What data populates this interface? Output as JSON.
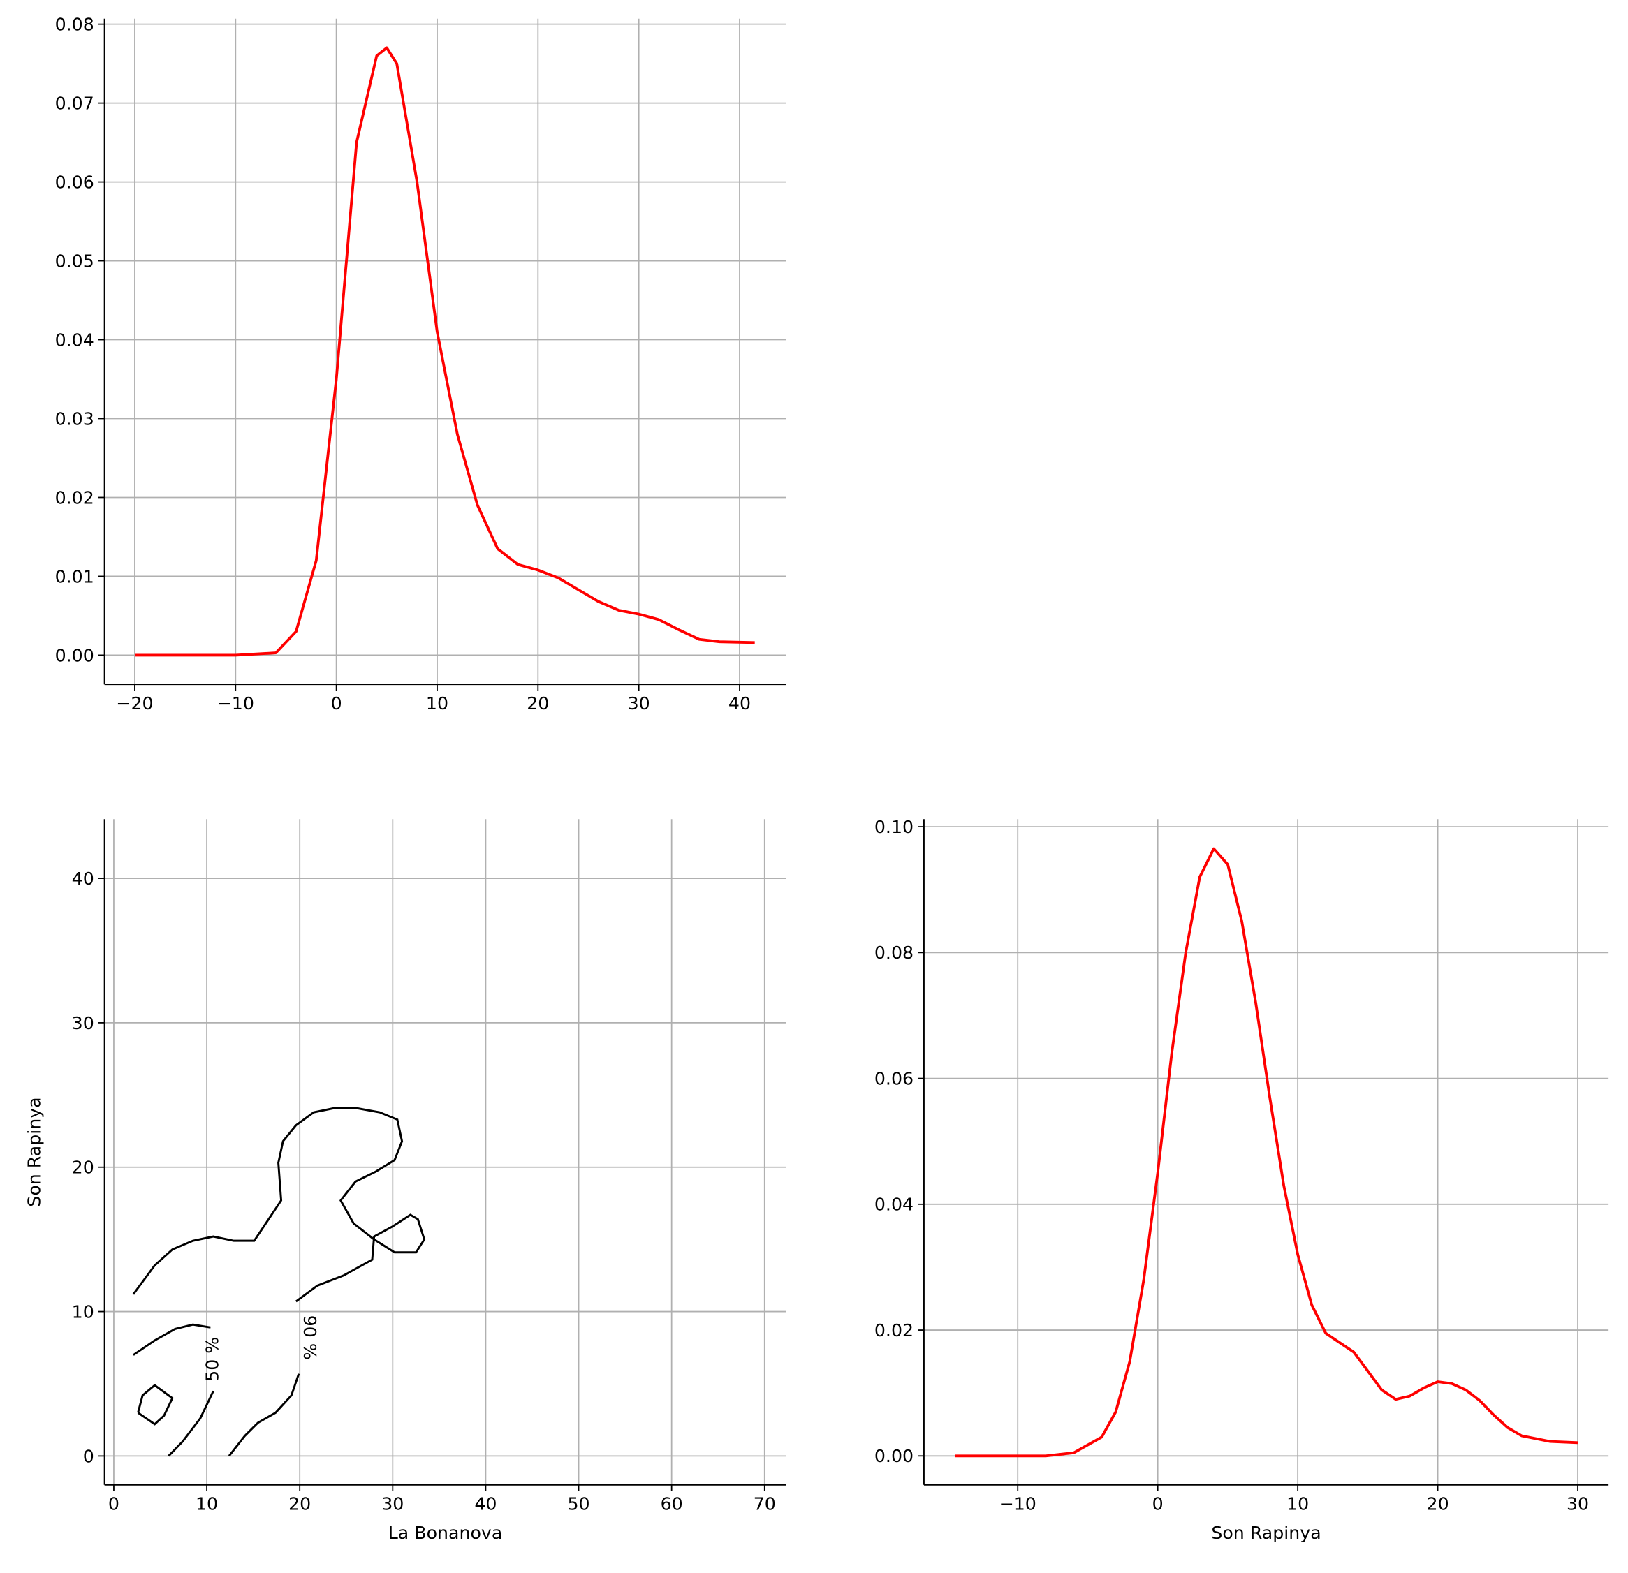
{
  "chart_data": [
    {
      "type": "line",
      "grid": true,
      "xlim": [
        -23,
        44.6
      ],
      "ylim": [
        -0.0037,
        0.0807
      ],
      "xticks": [
        {
          "value": -20,
          "label": "−20"
        },
        {
          "value": -10,
          "label": "−10"
        },
        0,
        10,
        20,
        30,
        40
      ],
      "yticks": [
        {
          "value": 0,
          "label": "0.00"
        },
        0.01,
        0.02,
        0.03,
        0.04,
        0.05,
        0.06,
        0.07,
        0.08
      ],
      "x": [
        -20,
        -10,
        -6,
        -4,
        -2,
        0,
        2,
        4,
        5,
        6,
        8,
        10,
        12,
        14,
        16,
        18,
        20,
        22,
        24,
        26,
        28,
        30,
        32,
        34,
        36,
        38,
        41.5
      ],
      "series": [
        {
          "color": "#ff0000",
          "values": [
            0,
            0,
            0.0003,
            0.003,
            0.012,
            0.035,
            0.065,
            0.076,
            0.077,
            0.075,
            0.06,
            0.041,
            0.028,
            0.019,
            0.0135,
            0.0115,
            0.0108,
            0.0098,
            0.0083,
            0.0068,
            0.0057,
            0.0052,
            0.0045,
            0.0032,
            0.002,
            0.0017,
            0.0016
          ]
        }
      ]
    },
    {
      "type": "contour",
      "grid": true,
      "xlabel": "La Bonanova",
      "ylabel": "Son Rapinya",
      "xlim": [
        -1.0,
        72.3
      ],
      "ylim": [
        -2.0,
        44.1
      ],
      "xticks": [
        0,
        10,
        20,
        30,
        40,
        50,
        60,
        70
      ],
      "yticks": [
        0,
        10,
        20,
        30,
        40
      ],
      "contours": [
        {
          "label": "90 %",
          "color": "#000000",
          "pieces": [
            {
              "x": [
                2.1,
                4.4,
                6.3,
                8.5,
                10.7,
                12.9,
                15.1,
                18.0,
                17.7,
                18.2,
                19.6,
                21.5,
                23.8,
                26.0,
                28.6,
                30.5,
                31.0,
                30.2,
                28.2,
                26.0,
                24.4,
                25.8,
                28.0,
                30.2,
                32.5,
                33.4,
                32.7,
                31.9,
                30.0,
                28.0,
                27.8,
                24.7,
                21.9,
                19.6
              ],
              "y": [
                11.2,
                13.2,
                14.3,
                14.9,
                15.2,
                14.9,
                14.9,
                17.7,
                20.3,
                21.8,
                22.9,
                23.8,
                24.1,
                24.1,
                23.8,
                23.3,
                21.8,
                20.5,
                19.7,
                19.0,
                17.7,
                16.1,
                15.0,
                14.1,
                14.1,
                15.0,
                16.4,
                16.7,
                15.9,
                15.2,
                13.6,
                12.5,
                11.8,
                10.7
              ]
            },
            {
              "x": [
                12.4,
                14.1,
                15.5,
                17.4,
                19.1,
                19.9
              ],
              "y": [
                0,
                1.4,
                2.3,
                3.0,
                4.2,
                5.7
              ]
            }
          ]
        },
        {
          "label": "50 %",
          "color": "#000000",
          "pieces": [
            {
              "x": [
                2.1,
                4.4,
                6.6,
                8.5,
                10.4
              ],
              "y": [
                7.0,
                8.0,
                8.8,
                9.1,
                8.9
              ]
            },
            {
              "x": [
                5.9,
                7.4,
                9.3,
                10.7
              ],
              "y": [
                0,
                1.0,
                2.6,
                4.5
              ]
            },
            {
              "x": [
                2.6,
                3.1,
                4.4,
                6.3,
                5.4,
                4.4,
                2.6
              ],
              "y": [
                3.0,
                4.2,
                4.9,
                4.0,
                2.8,
                2.2,
                3.0
              ]
            }
          ]
        }
      ]
    },
    {
      "type": "line",
      "grid": true,
      "xlabel": "Son Rapinya",
      "xlim": [
        -16.7,
        32.2
      ],
      "ylim": [
        -0.0046,
        0.1012
      ],
      "xticks": [
        {
          "value": -10,
          "label": "−10"
        },
        0,
        10,
        20,
        30
      ],
      "yticks": [
        {
          "value": 0,
          "label": "0.00"
        },
        0.02,
        0.04,
        0.06,
        0.08,
        {
          "value": 0.1,
          "label": "0.10"
        }
      ],
      "x": [
        -14.5,
        -8,
        -6,
        -4,
        -3,
        -2,
        -1,
        0,
        1,
        2,
        3,
        4,
        5,
        6,
        7,
        8,
        9,
        10,
        11,
        12,
        13,
        14,
        15,
        16,
        17,
        18,
        19,
        20,
        21,
        22,
        23,
        24,
        25,
        26,
        28,
        30
      ],
      "series": [
        {
          "color": "#ff0000",
          "values": [
            0,
            0,
            0.0005,
            0.003,
            0.007,
            0.015,
            0.028,
            0.045,
            0.064,
            0.08,
            0.092,
            0.0965,
            0.094,
            0.085,
            0.072,
            0.057,
            0.043,
            0.032,
            0.024,
            0.0195,
            0.018,
            0.0165,
            0.0135,
            0.0105,
            0.009,
            0.0095,
            0.0108,
            0.0118,
            0.0115,
            0.0105,
            0.0088,
            0.0065,
            0.0045,
            0.0032,
            0.0023,
            0.0021
          ]
        }
      ]
    }
  ]
}
